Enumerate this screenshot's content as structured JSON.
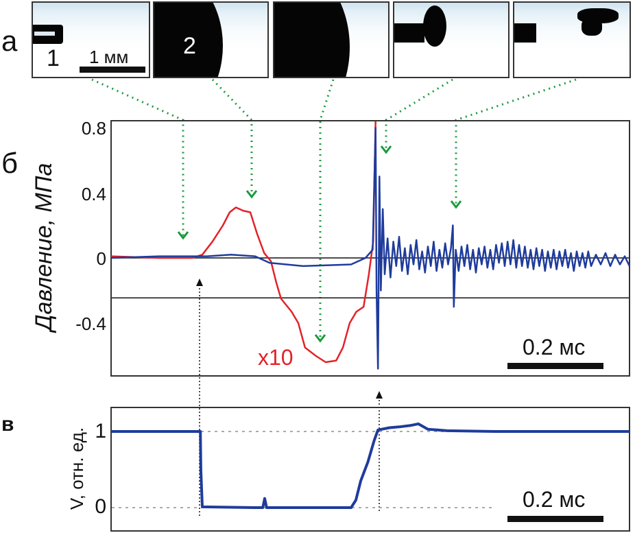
{
  "panels": {
    "a": "а",
    "b": "б",
    "c": "в"
  },
  "images": {
    "label_1": "1",
    "label_2": "2",
    "scale": "1 мм",
    "count": 5
  },
  "colors": {
    "red": "#e32228",
    "blue": "#1f3c9c",
    "green": "#1a9a3c",
    "frame": "#333333"
  },
  "chart_data": [
    {
      "type": "line",
      "ylabel": "Давление, МПа",
      "yticks": [
        "0.8",
        "0.4",
        "0",
        "-0.4"
      ],
      "ytick_values": [
        0.8,
        0.4,
        0,
        -0.4
      ],
      "ylim": [
        -0.72,
        0.86
      ],
      "xlim_ms": [
        0,
        1.08
      ],
      "scale_bar": "0.2 мс",
      "annotation": "x10",
      "reference_lines": [
        0,
        -0.245
      ],
      "series": [
        {
          "name": "red (x10)",
          "color": "#e32228",
          "points": [
            [
              0,
              0.01
            ],
            [
              0.1,
              0
            ],
            [
              0.169,
              0
            ],
            [
              0.19,
              0.02
            ],
            [
              0.211,
              0.1
            ],
            [
              0.233,
              0.2
            ],
            [
              0.247,
              0.28
            ],
            [
              0.26,
              0.31
            ],
            [
              0.275,
              0.29
            ],
            [
              0.29,
              0.28
            ],
            [
              0.304,
              0.15
            ],
            [
              0.319,
              0.03
            ],
            [
              0.333,
              -0.02
            ],
            [
              0.344,
              -0.15
            ],
            [
              0.354,
              -0.25
            ],
            [
              0.376,
              -0.33
            ],
            [
              0.39,
              -0.4
            ],
            [
              0.404,
              -0.55
            ],
            [
              0.426,
              -0.6
            ],
            [
              0.447,
              -0.64
            ],
            [
              0.469,
              -0.63
            ],
            [
              0.483,
              -0.55
            ],
            [
              0.497,
              -0.4
            ],
            [
              0.511,
              -0.33
            ],
            [
              0.526,
              -0.3
            ],
            [
              0.537,
              -0.1
            ],
            [
              0.546,
              0.1
            ],
            [
              0.551,
              0.86
            ]
          ]
        },
        {
          "name": "blue",
          "color": "#1f3c9c",
          "points": [
            [
              0,
              0
            ],
            [
              0.1,
              0.01
            ],
            [
              0.2,
              0.01
            ],
            [
              0.25,
              0.02
            ],
            [
              0.3,
              0.01
            ],
            [
              0.33,
              -0.03
            ],
            [
              0.4,
              -0.05
            ],
            [
              0.5,
              -0.04
            ],
            [
              0.53,
              0
            ],
            [
              0.545,
              0.05
            ],
            [
              0.551,
              0.8
            ],
            [
              0.553,
              -0.2
            ],
            [
              0.556,
              -0.68
            ],
            [
              0.559,
              0.5
            ],
            [
              0.562,
              -0.2
            ],
            [
              0.566,
              0.3
            ],
            [
              0.57,
              -0.1
            ],
            [
              0.576,
              0.12
            ],
            [
              0.582,
              -0.12
            ],
            [
              0.588,
              0.1
            ],
            [
              0.594,
              -0.05
            ],
            [
              0.6,
              0.13
            ],
            [
              0.606,
              -0.08
            ],
            [
              0.612,
              0.06
            ],
            [
              0.618,
              -0.1
            ],
            [
              0.624,
              0.08
            ],
            [
              0.63,
              -0.04
            ],
            [
              0.636,
              0.11
            ],
            [
              0.642,
              -0.07
            ],
            [
              0.648,
              0.04
            ],
            [
              0.654,
              -0.09
            ],
            [
              0.66,
              0.07
            ],
            [
              0.666,
              -0.05
            ],
            [
              0.672,
              0.1
            ],
            [
              0.678,
              -0.08
            ],
            [
              0.684,
              0.05
            ],
            [
              0.69,
              -0.06
            ],
            [
              0.696,
              0.09
            ],
            [
              0.702,
              -0.04
            ],
            [
              0.708,
              0.06
            ],
            [
              0.712,
              0.2
            ],
            [
              0.714,
              -0.3
            ],
            [
              0.718,
              0.05
            ],
            [
              0.724,
              -0.08
            ],
            [
              0.73,
              0.07
            ],
            [
              0.736,
              -0.05
            ],
            [
              0.742,
              0.08
            ],
            [
              0.748,
              -0.07
            ],
            [
              0.754,
              0.05
            ],
            [
              0.76,
              -0.09
            ],
            [
              0.766,
              0.06
            ],
            [
              0.772,
              -0.04
            ],
            [
              0.778,
              0.07
            ],
            [
              0.784,
              -0.06
            ],
            [
              0.79,
              0.05
            ],
            [
              0.796,
              -0.07
            ],
            [
              0.802,
              0.08
            ],
            [
              0.808,
              -0.03
            ],
            [
              0.814,
              0.09
            ],
            [
              0.82,
              -0.05
            ],
            [
              0.826,
              0.1
            ],
            [
              0.832,
              -0.04
            ],
            [
              0.838,
              0.11
            ],
            [
              0.844,
              -0.06
            ],
            [
              0.85,
              0.08
            ],
            [
              0.856,
              -0.05
            ],
            [
              0.862,
              0.07
            ],
            [
              0.868,
              -0.06
            ],
            [
              0.874,
              0.05
            ],
            [
              0.88,
              -0.07
            ],
            [
              0.886,
              0.06
            ],
            [
              0.892,
              -0.05
            ],
            [
              0.898,
              0.05
            ],
            [
              0.904,
              -0.08
            ],
            [
              0.91,
              0.04
            ],
            [
              0.916,
              -0.06
            ],
            [
              0.922,
              0.05
            ],
            [
              0.928,
              -0.07
            ],
            [
              0.934,
              0.04
            ],
            [
              0.94,
              -0.05
            ],
            [
              0.946,
              0.05
            ],
            [
              0.952,
              -0.06
            ],
            [
              0.958,
              0.03
            ],
            [
              0.964,
              -0.08
            ],
            [
              0.97,
              0.04
            ],
            [
              0.976,
              -0.05
            ],
            [
              0.982,
              0.03
            ],
            [
              0.988,
              -0.06
            ],
            [
              0.994,
              0.04
            ],
            [
              1.0,
              -0.05
            ],
            [
              1.01,
              0.02
            ],
            [
              1.02,
              -0.04
            ],
            [
              1.03,
              0.03
            ],
            [
              1.04,
              -0.05
            ],
            [
              1.05,
              0.02
            ],
            [
              1.06,
              -0.04
            ],
            [
              1.07,
              0.01
            ],
            [
              1.08,
              -0.05
            ]
          ]
        }
      ]
    },
    {
      "type": "line",
      "ylabel": "V, отн. ед.",
      "yticks": [
        "1",
        "0"
      ],
      "ytick_values": [
        1,
        0
      ],
      "ylim": [
        -0.3,
        1.32
      ],
      "xlim_ms": [
        0,
        1.08
      ],
      "scale_bar": "0.2 мс",
      "reference_lines": [
        1,
        0
      ],
      "series": [
        {
          "name": "V",
          "color": "#1f3c9c",
          "points": [
            [
              0,
              1
            ],
            [
              0.186,
              1
            ],
            [
              0.187,
              0.5
            ],
            [
              0.19,
              0.01
            ],
            [
              0.3,
              0
            ],
            [
              0.316,
              0
            ],
            [
              0.32,
              0.12
            ],
            [
              0.324,
              0
            ],
            [
              0.4,
              0
            ],
            [
              0.5,
              0
            ],
            [
              0.51,
              0.1
            ],
            [
              0.52,
              0.35
            ],
            [
              0.535,
              0.6
            ],
            [
              0.548,
              0.88
            ],
            [
              0.556,
              1.02
            ],
            [
              0.58,
              1.05
            ],
            [
              0.6,
              1.06
            ],
            [
              0.625,
              1.08
            ],
            [
              0.64,
              1.1
            ],
            [
              0.66,
              1.03
            ],
            [
              0.7,
              1.01
            ],
            [
              0.8,
              1.0
            ],
            [
              1.08,
              1.0
            ]
          ]
        }
      ]
    }
  ]
}
